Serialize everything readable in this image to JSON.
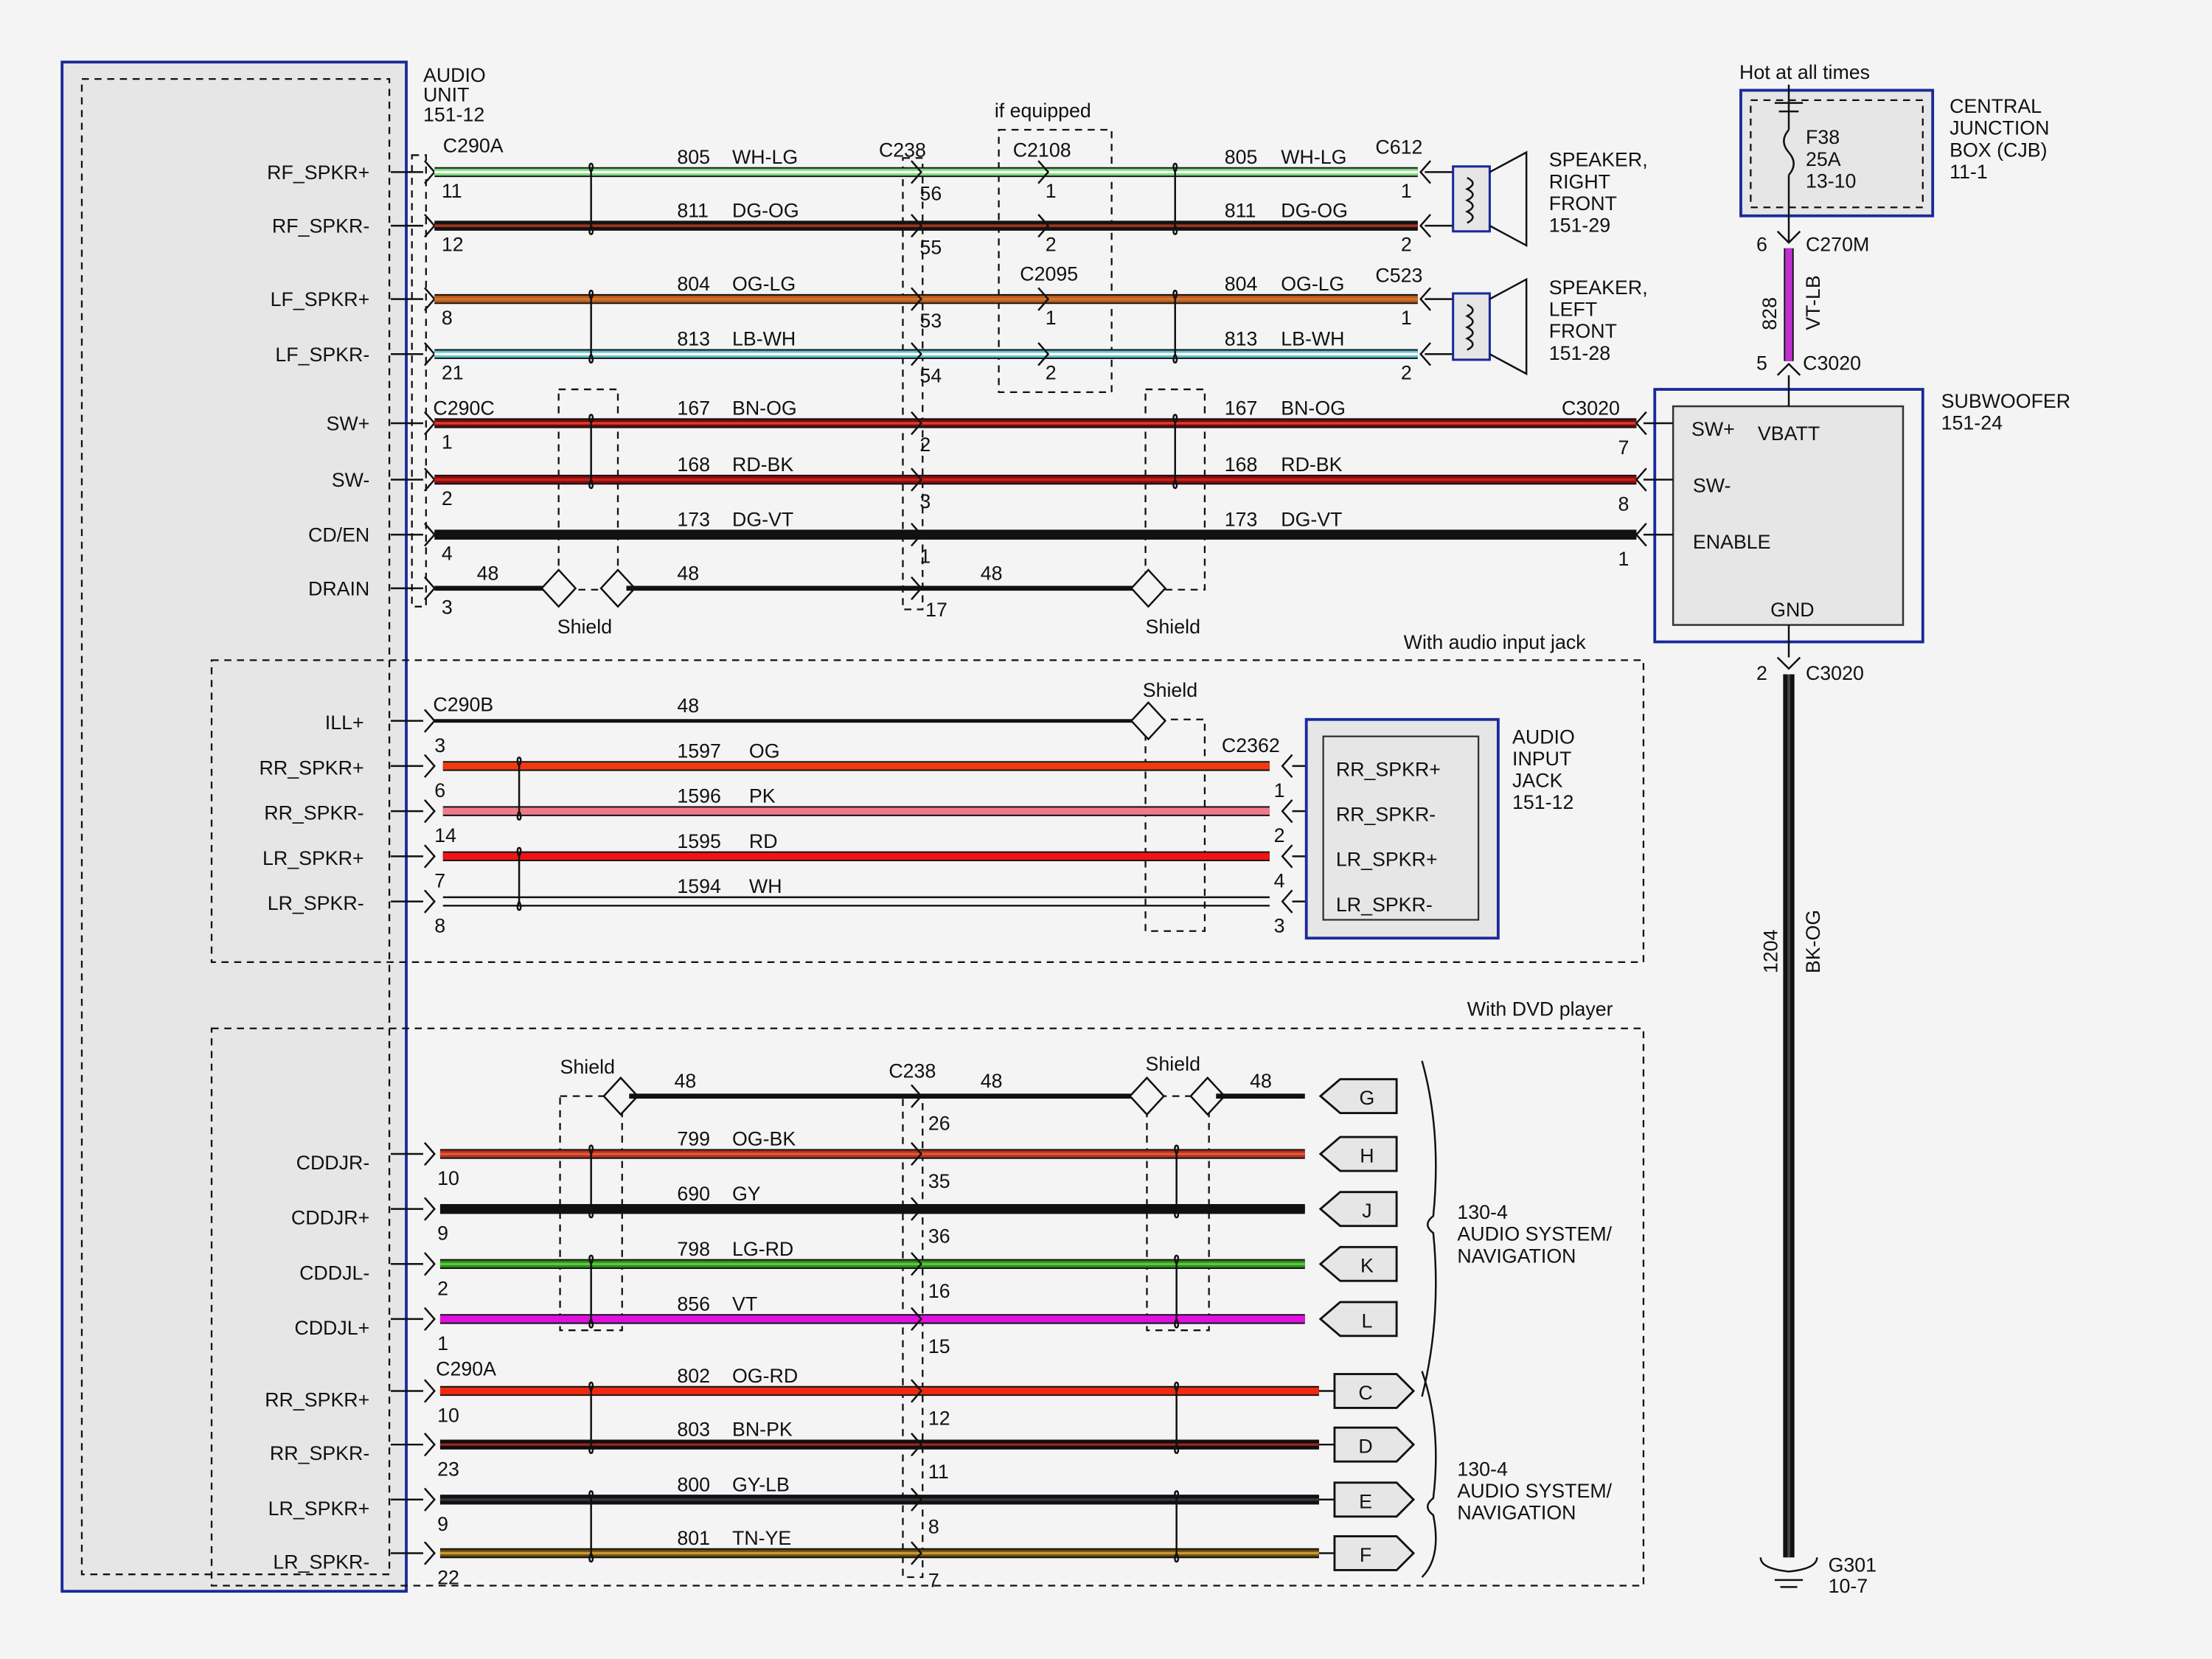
{
  "audio_unit": {
    "title": [
      "AUDIO",
      "UNIT",
      "151-12"
    ]
  },
  "labels": {
    "if_equipped": "if equipped",
    "with_audio_input_jack": "With audio input jack",
    "with_dvd_player": "With DVD player",
    "shield": "Shield",
    "hot_at_all_times": "Hot at all times"
  },
  "connectors": {
    "c290a": "C290A",
    "c290b": "C290B",
    "c290c": "C290C",
    "c238": "C238",
    "c2108": "C2108",
    "c2095": "C2095",
    "c612": "C612",
    "c523": "C523",
    "c3020": "C3020",
    "c2362": "C2362",
    "c270m": "C270M"
  },
  "top_wires": [
    {
      "signal": "RF_SPKR+",
      "pin": "11",
      "circuit": "805",
      "color": "WH-LG",
      "c238_pin": "56",
      "inline_pin": "1",
      "end_pin": "1",
      "base": "#7ed87e",
      "stripe": "#ffffff"
    },
    {
      "signal": "RF_SPKR-",
      "pin": "12",
      "circuit": "811",
      "color": "DG-OG",
      "c238_pin": "55",
      "inline_pin": "2",
      "end_pin": "2",
      "base": "#141414",
      "stripe": "#a8321c"
    },
    {
      "signal": "LF_SPKR+",
      "pin": "8",
      "circuit": "804",
      "color": "OG-LG",
      "c238_pin": "53",
      "inline_pin": "1",
      "end_pin": "1",
      "base": "#b85a18",
      "stripe": "#cf7430"
    },
    {
      "signal": "LF_SPKR-",
      "pin": "21",
      "circuit": "813",
      "color": "LB-WH",
      "c238_pin": "54",
      "inline_pin": "2",
      "end_pin": "2",
      "base": "#62c0cc",
      "stripe": "#ffffff"
    },
    {
      "signal": "SW+",
      "pin": "1",
      "circuit": "167",
      "color": "BN-OG",
      "c238_pin": "2",
      "end_pin": "7",
      "base": "#6e0c0c",
      "stripe": "#e23a2a"
    },
    {
      "signal": "SW-",
      "pin": "2",
      "circuit": "168",
      "color": "RD-BK",
      "c238_pin": "3",
      "end_pin": "8",
      "base": "#8a0c0c",
      "stripe": "#c62020"
    },
    {
      "signal": "CD/EN",
      "pin": "4",
      "circuit": "173",
      "color": "DG-VT",
      "c238_pin": "1",
      "end_pin": "1",
      "base": "#111111",
      "stripe": "#111111"
    },
    {
      "signal": "DRAIN",
      "pin": "3",
      "circuit": "48",
      "c238_pin": "17",
      "circuit_mid": "48",
      "circuit_right": "48"
    }
  ],
  "speakers": [
    {
      "name": [
        "SPEAKER,",
        "RIGHT",
        "FRONT",
        "151-29"
      ]
    },
    {
      "name": [
        "SPEAKER,",
        "LEFT",
        "FRONT",
        "151-28"
      ]
    }
  ],
  "cjb": {
    "name": [
      "CENTRAL",
      "JUNCTION",
      "BOX (CJB)",
      "11-1"
    ],
    "fuse": [
      "F38",
      "25A",
      "13-10"
    ]
  },
  "vbatt_wire": {
    "circuit": "828",
    "color": "VT-LB",
    "top_pin": "6",
    "bottom_pin": "5",
    "base": "#c030d0"
  },
  "subwoofer": {
    "name": [
      "SUBWOOFER",
      "151-24"
    ],
    "pins": [
      "SW+",
      "VBATT",
      "SW-",
      "ENABLE",
      "GND"
    ]
  },
  "ground_wire": {
    "pin": "2",
    "circuit": "1204",
    "color": "BK-OG",
    "ground": [
      "G301",
      "10-7"
    ]
  },
  "jack_wires": [
    {
      "signal": "ILL+",
      "pin": "3",
      "circuit": "48"
    },
    {
      "signal": "RR_SPKR+",
      "pin": "6",
      "circuit": "1597",
      "color": "OG",
      "end_pin": "1",
      "base": "#f03a12",
      "stripe": "#f03a12"
    },
    {
      "signal": "RR_SPKR-",
      "pin": "14",
      "circuit": "1596",
      "color": "PK",
      "end_pin": "2",
      "base": "#f07a88",
      "stripe": "#f07a88"
    },
    {
      "signal": "LR_SPKR+",
      "pin": "7",
      "circuit": "1595",
      "color": "RD",
      "end_pin": "4",
      "base": "#f01414",
      "stripe": "#f01414"
    },
    {
      "signal": "LR_SPKR-",
      "pin": "8",
      "circuit": "1594",
      "color": "WH",
      "end_pin": "3",
      "base": "#ffffff",
      "stripe": "#ffffff"
    }
  ],
  "audio_input_jack": {
    "name": [
      "AUDIO",
      "INPUT",
      "JACK",
      "151-12"
    ],
    "pins": [
      "RR_SPKR+",
      "RR_SPKR-",
      "LR_SPKR+",
      "LR_SPKR-"
    ]
  },
  "dvd_wires": [
    {
      "circuit": "48",
      "c238_pin": "26",
      "circuit_right": "48",
      "plug": "G"
    },
    {
      "signal": "CDDJR-",
      "pin": "10",
      "circuit": "799",
      "color": "OG-BK",
      "c238_pin": "35",
      "plug": "H",
      "base": "#b0301c",
      "stripe": "#e05a3a"
    },
    {
      "signal": "CDDJR+",
      "pin": "9",
      "circuit": "690",
      "color": "GY",
      "c238_pin": "36",
      "plug": "J",
      "base": "#111111",
      "stripe": "#111111"
    },
    {
      "signal": "CDDJL-",
      "pin": "2",
      "circuit": "798",
      "color": "LG-RD",
      "c238_pin": "16",
      "plug": "K",
      "base": "#2c8a1c",
      "stripe": "#5cc83a"
    },
    {
      "signal": "CDDJL+",
      "pin": "1",
      "circuit": "856",
      "color": "VT",
      "c238_pin": "15",
      "plug": "L",
      "base": "#e010e0",
      "stripe": "#e010e0"
    },
    {
      "signal": "RR_SPKR+",
      "pin": "10",
      "circuit": "802",
      "color": "OG-RD",
      "c238_pin": "12",
      "plug": "C",
      "base": "#f02a10",
      "stripe": "#f02a10"
    },
    {
      "signal": "RR_SPKR-",
      "pin": "23",
      "circuit": "803",
      "color": "BN-PK",
      "c238_pin": "11",
      "plug": "D",
      "base": "#1a0a0a",
      "stripe": "#8a2a2a"
    },
    {
      "signal": "LR_SPKR+",
      "pin": "9",
      "circuit": "800",
      "color": "GY-LB",
      "c238_pin": "8",
      "plug": "E",
      "base": "#111111",
      "stripe": "#333a44"
    },
    {
      "signal": "LR_SPKR-",
      "pin": "22",
      "circuit": "801",
      "color": "TN-YE",
      "c238_pin": "7",
      "plug": "F",
      "base": "#6a4a10",
      "stripe": "#c89a30"
    }
  ],
  "nav_refs": [
    {
      "name": [
        "130-4",
        "AUDIO SYSTEM/",
        "NAVIGATION"
      ]
    },
    {
      "name": [
        "130-4",
        "AUDIO SYSTEM/",
        "NAVIGATION"
      ]
    }
  ],
  "colors": {
    "frame": "#1a2a9a",
    "module_fill": "#e6e6e6",
    "background": "#f4f4f4"
  }
}
